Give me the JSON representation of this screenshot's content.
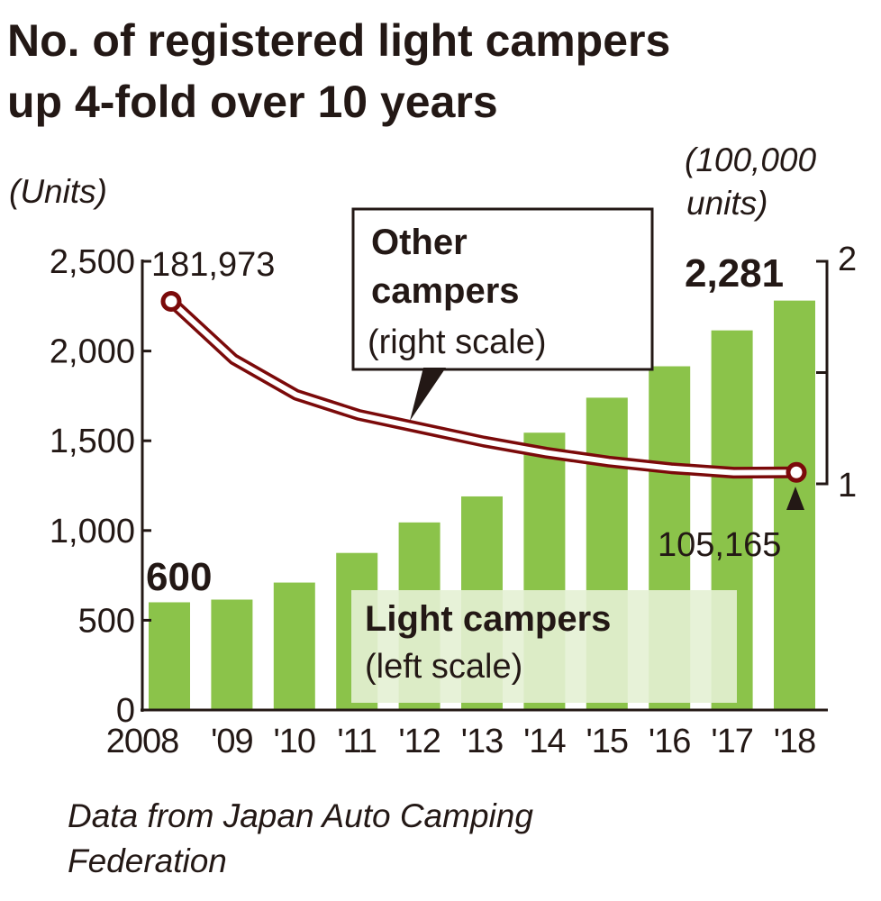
{
  "chart_data": {
    "type": "bar+line",
    "title": "No. of registered light campers up 4-fold over 10 years",
    "title_lines": [
      "No. of registered light campers",
      "up 4-fold over 10 years"
    ],
    "left_axis_unit": "(Units)",
    "right_axis_unit_lines": [
      "(100,000",
      "units)"
    ],
    "categories": [
      "2008",
      "'09",
      "'10",
      "'11",
      "'12",
      "'13",
      "'14",
      "'15",
      "'16",
      "'17",
      "'18"
    ],
    "left_ylim": [
      0,
      2500
    ],
    "left_ticks": [
      "0",
      "500",
      "1,000",
      "1,500",
      "2,000",
      "2,500"
    ],
    "right_ylim": [
      1,
      2
    ],
    "right_ticks": [
      "1",
      "2"
    ],
    "series": [
      {
        "name": "Light campers",
        "name_note": "(left scale)",
        "kind": "bar",
        "axis": "left",
        "color": "#8bc34a",
        "values": [
          600,
          615,
          710,
          875,
          1045,
          1190,
          1545,
          1740,
          1915,
          2115,
          2281
        ]
      },
      {
        "name": "Other campers",
        "name_note": "(right scale)",
        "kind": "line",
        "axis": "right",
        "color": "#7b0a0a",
        "values": [
          1.81973,
          1.56,
          1.4,
          1.31,
          1.25,
          1.19,
          1.14,
          1.1,
          1.07,
          1.05,
          1.05165
        ]
      }
    ],
    "data_labels": {
      "bar_first": "600",
      "bar_last": "2,281",
      "line_first": "181,973",
      "line_last": "105,165"
    },
    "source_lines": [
      "Data from Japan Auto Camping",
      "Federation"
    ]
  }
}
